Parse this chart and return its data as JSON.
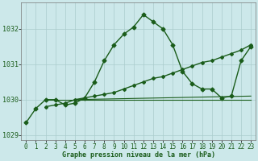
{
  "title": "Graphe pression niveau de la mer (hPa)",
  "background_color": "#cce8ea",
  "grid_color": "#aacccc",
  "line_color": "#1a5c1a",
  "xlim": [
    -0.5,
    23.5
  ],
  "ylim": [
    1028.85,
    1032.75
  ],
  "yticks": [
    1029,
    1030,
    1031,
    1032
  ],
  "xticks": [
    0,
    1,
    2,
    3,
    4,
    5,
    6,
    7,
    8,
    9,
    10,
    11,
    12,
    13,
    14,
    15,
    16,
    17,
    18,
    19,
    20,
    21,
    22,
    23
  ],
  "series": [
    {
      "x": [
        0,
        1,
        2,
        3,
        4,
        5,
        6,
        7,
        8,
        9,
        10,
        11,
        12,
        13,
        14,
        15,
        16,
        17,
        18,
        19,
        20,
        21,
        22,
        23
      ],
      "y": [
        1029.35,
        1029.75,
        1030.0,
        1030.0,
        1029.85,
        1029.9,
        1030.05,
        1030.5,
        1031.1,
        1031.55,
        1031.85,
        1032.05,
        1032.4,
        1032.2,
        1032.0,
        1031.55,
        1030.8,
        1030.45,
        1030.3,
        1030.3,
        1030.05,
        1030.1,
        1031.1,
        1031.5
      ],
      "marker": true,
      "markersize": 2.5,
      "lw": 1.0
    },
    {
      "x": [
        2,
        3,
        4,
        5,
        6,
        7,
        8,
        9,
        10,
        11,
        12,
        13,
        14,
        15,
        16,
        17,
        18,
        19,
        20,
        21,
        22,
        23
      ],
      "y": [
        1029.8,
        1029.85,
        1029.9,
        1030.0,
        1030.05,
        1030.1,
        1030.15,
        1030.2,
        1030.3,
        1030.4,
        1030.5,
        1030.6,
        1030.65,
        1030.75,
        1030.85,
        1030.95,
        1031.05,
        1031.1,
        1031.2,
        1031.3,
        1031.4,
        1031.55
      ],
      "marker": true,
      "markersize": 2.0,
      "lw": 1.0
    },
    {
      "x": [
        2,
        23
      ],
      "y": [
        1030.0,
        1030.0
      ],
      "marker": false,
      "markersize": 0,
      "lw": 0.8
    },
    {
      "x": [
        5,
        23
      ],
      "y": [
        1030.0,
        1030.1
      ],
      "marker": false,
      "markersize": 0,
      "lw": 0.8
    }
  ],
  "tick_fontsize": 5.5,
  "label_fontsize": 6.0,
  "label_fontweight": "bold"
}
